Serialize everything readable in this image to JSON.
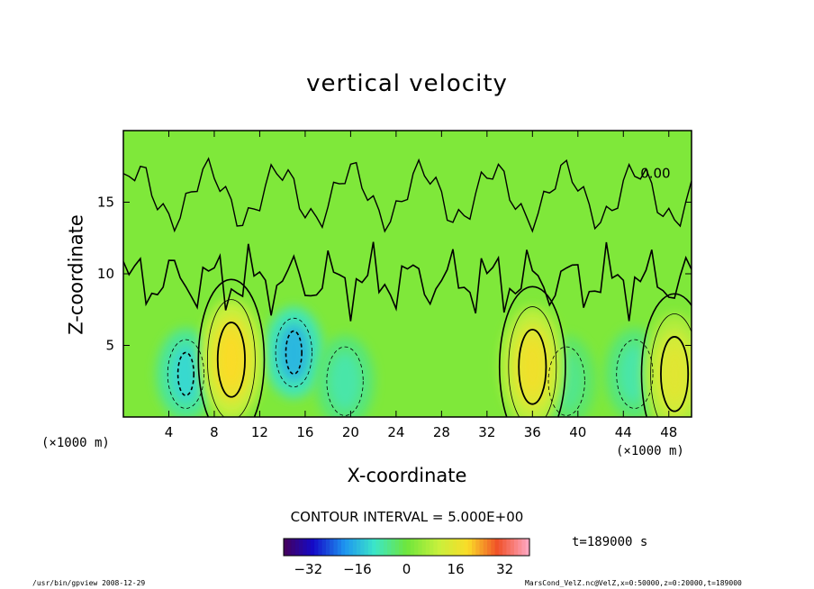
{
  "chart_data": {
    "type": "heatmap",
    "title": "vertical velocity",
    "xlabel": "X-coordinate",
    "ylabel": "Z-coordinate",
    "x_unit": "(×1000 m)",
    "z_unit": "(×1000 m)",
    "xlim": [
      0,
      50
    ],
    "ylim": [
      0,
      20
    ],
    "x_ticks": [
      4,
      8,
      12,
      16,
      20,
      24,
      28,
      32,
      36,
      40,
      44,
      48
    ],
    "y_ticks": [
      5,
      10,
      15
    ],
    "contour_interval": "CONTOUR INTERVAL = 5.000E+00",
    "contour_label": "0.00",
    "colorbar": {
      "ticks": [
        -32,
        -16,
        0,
        16,
        32
      ],
      "range": [
        -40,
        40
      ]
    },
    "updrafts": [
      {
        "x": 9.5,
        "z": 4.0,
        "max": 20
      },
      {
        "x": 36.0,
        "z": 3.5,
        "max": 18
      },
      {
        "x": 48.5,
        "z": 3.0,
        "max": 15
      }
    ],
    "downdrafts": [
      {
        "x": 5.5,
        "z": 3.0,
        "min": -12
      },
      {
        "x": 15.0,
        "z": 4.5,
        "min": -16
      },
      {
        "x": 19.5,
        "z": 2.5,
        "min": -8
      },
      {
        "x": 39.0,
        "z": 2.5,
        "min": -6
      },
      {
        "x": 45.0,
        "z": 3.0,
        "min": -8
      }
    ],
    "time": "t=189000 s"
  },
  "footer": {
    "left": "/usr/bin/gpview   2008-12-29",
    "right": "MarsCond_VelZ.nc@VelZ,x=0:50000,z=0:20000,t=189000"
  },
  "colors": {
    "background_field": "#7fe83a",
    "frame": "#000000"
  }
}
